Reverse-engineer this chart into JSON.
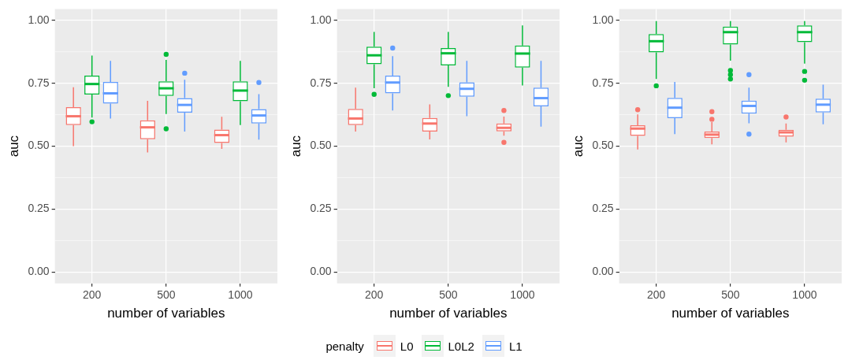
{
  "chart_data": [
    {
      "type": "box",
      "categories": [
        "200",
        "500",
        "1000"
      ],
      "xlabel": "number of variables",
      "ylabel": "auc",
      "ylim": [
        -0.045,
        1.045
      ],
      "yticks": [
        {
          "value": 0,
          "label": "0.00"
        },
        {
          "value": 0.25,
          "label": "0.25"
        },
        {
          "value": 0.5,
          "label": "0.50"
        },
        {
          "value": 0.75,
          "label": "0.75"
        },
        {
          "value": 1,
          "label": "1.00"
        }
      ],
      "grid": true,
      "legend": "bottom",
      "legend_title": "penalty",
      "series": [
        {
          "name": "L0",
          "color": "#f8766d",
          "boxes": [
            {
              "low": 0.5,
              "q1": 0.584,
              "median": 0.619,
              "q3": 0.655,
              "high": 0.734
            },
            {
              "low": 0.475,
              "q1": 0.528,
              "median": 0.575,
              "q3": 0.603,
              "high": 0.68
            },
            {
              "low": 0.489,
              "q1": 0.513,
              "median": 0.544,
              "q3": 0.566,
              "high": 0.617
            }
          ]
        },
        {
          "name": "L0L2",
          "color": "#00ba38",
          "boxes": [
            {
              "low": 0.614,
              "q1": 0.705,
              "median": 0.747,
              "q3": 0.78,
              "high": 0.86,
              "outliers": [
                0.597
              ]
            },
            {
              "low": 0.628,
              "q1": 0.7,
              "median": 0.73,
              "q3": 0.758,
              "high": 0.843,
              "outliers": [
                0.865,
                0.569
              ]
            },
            {
              "low": 0.584,
              "q1": 0.679,
              "median": 0.721,
              "q3": 0.758,
              "high": 0.839
            }
          ]
        },
        {
          "name": "L1",
          "color": "#619cff",
          "boxes": [
            {
              "low": 0.61,
              "q1": 0.669,
              "median": 0.71,
              "q3": 0.755,
              "high": 0.839
            },
            {
              "low": 0.558,
              "q1": 0.633,
              "median": 0.664,
              "q3": 0.691,
              "high": 0.764,
              "outliers": [
                0.79
              ]
            },
            {
              "low": 0.526,
              "q1": 0.59,
              "median": 0.622,
              "q3": 0.647,
              "high": 0.707,
              "outliers": [
                0.753
              ]
            }
          ]
        }
      ]
    },
    {
      "type": "box",
      "categories": [
        "200",
        "500",
        "1000"
      ],
      "xlabel": "number of variables",
      "ylabel": "auc",
      "ylim": [
        -0.045,
        1.045
      ],
      "yticks": [
        {
          "value": 0,
          "label": "0.00"
        },
        {
          "value": 0.25,
          "label": "0.25"
        },
        {
          "value": 0.5,
          "label": "0.50"
        },
        {
          "value": 0.75,
          "label": "0.75"
        },
        {
          "value": 1,
          "label": "1.00"
        }
      ],
      "grid": true,
      "legend": false,
      "series": [
        {
          "color": "#f8766d",
          "boxes": [
            {
              "low": 0.558,
              "q1": 0.584,
              "median": 0.61,
              "q3": 0.648,
              "high": 0.733
            },
            {
              "low": 0.527,
              "q1": 0.558,
              "median": 0.59,
              "q3": 0.612,
              "high": 0.666
            },
            {
              "low": 0.542,
              "q1": 0.559,
              "median": 0.573,
              "q3": 0.59,
              "high": 0.618,
              "outliers": [
                0.642,
                0.515
              ]
            }
          ]
        },
        {
          "color": "#00ba38",
          "boxes": [
            {
              "low": 0.73,
              "q1": 0.826,
              "median": 0.861,
              "q3": 0.895,
              "high": 0.954,
              "outliers": [
                0.706
              ]
            },
            {
              "low": 0.736,
              "q1": 0.821,
              "median": 0.869,
              "q3": 0.89,
              "high": 0.954,
              "outliers": [
                0.701
              ]
            },
            {
              "low": 0.741,
              "q1": 0.812,
              "median": 0.868,
              "q3": 0.9,
              "high": 0.98
            }
          ]
        },
        {
          "color": "#619cff",
          "boxes": [
            {
              "low": 0.642,
              "q1": 0.71,
              "median": 0.753,
              "q3": 0.78,
              "high": 0.858,
              "outliers": [
                0.89
              ]
            },
            {
              "low": 0.619,
              "q1": 0.697,
              "median": 0.728,
              "q3": 0.754,
              "high": 0.839
            },
            {
              "low": 0.578,
              "q1": 0.658,
              "median": 0.691,
              "q3": 0.733,
              "high": 0.839
            }
          ]
        }
      ]
    },
    {
      "type": "box",
      "categories": [
        "200",
        "500",
        "1000"
      ],
      "xlabel": "number of variables",
      "ylabel": "auc",
      "ylim": [
        -0.045,
        1.045
      ],
      "yticks": [
        {
          "value": 0,
          "label": "0.00"
        },
        {
          "value": 0.25,
          "label": "0.25"
        },
        {
          "value": 0.5,
          "label": "0.50"
        },
        {
          "value": 0.75,
          "label": "0.75"
        },
        {
          "value": 1,
          "label": "1.00"
        }
      ],
      "grid": true,
      "legend": false,
      "series": [
        {
          "color": "#f8766d",
          "boxes": [
            {
              "low": 0.487,
              "q1": 0.541,
              "median": 0.57,
              "q3": 0.583,
              "high": 0.626,
              "outliers": [
                0.645
              ]
            },
            {
              "low": 0.507,
              "q1": 0.532,
              "median": 0.546,
              "q3": 0.558,
              "high": 0.596,
              "outliers": [
                0.637,
                0.607
              ]
            },
            {
              "low": 0.515,
              "q1": 0.538,
              "median": 0.555,
              "q3": 0.565,
              "high": 0.59,
              "outliers": [
                0.616
              ]
            }
          ]
        },
        {
          "color": "#00ba38",
          "boxes": [
            {
              "low": 0.767,
              "q1": 0.873,
              "median": 0.917,
              "q3": 0.945,
              "high": 0.997,
              "outliers": [
                0.74
              ]
            },
            {
              "low": 0.84,
              "q1": 0.904,
              "median": 0.953,
              "q3": 0.975,
              "high": 0.997,
              "outliers": [
                0.801,
                0.784,
                0.767
              ]
            },
            {
              "low": 0.828,
              "q1": 0.913,
              "median": 0.953,
              "q3": 0.98,
              "high": 0.997,
              "outliers": [
                0.797,
                0.762
              ]
            }
          ]
        },
        {
          "color": "#619cff",
          "boxes": [
            {
              "low": 0.548,
              "q1": 0.611,
              "median": 0.653,
              "q3": 0.692,
              "high": 0.755
            },
            {
              "low": 0.591,
              "q1": 0.629,
              "median": 0.66,
              "q3": 0.681,
              "high": 0.733,
              "outliers": [
                0.784,
                0.548
              ]
            },
            {
              "low": 0.587,
              "q1": 0.634,
              "median": 0.665,
              "q3": 0.689,
              "high": 0.744
            }
          ]
        }
      ]
    }
  ]
}
